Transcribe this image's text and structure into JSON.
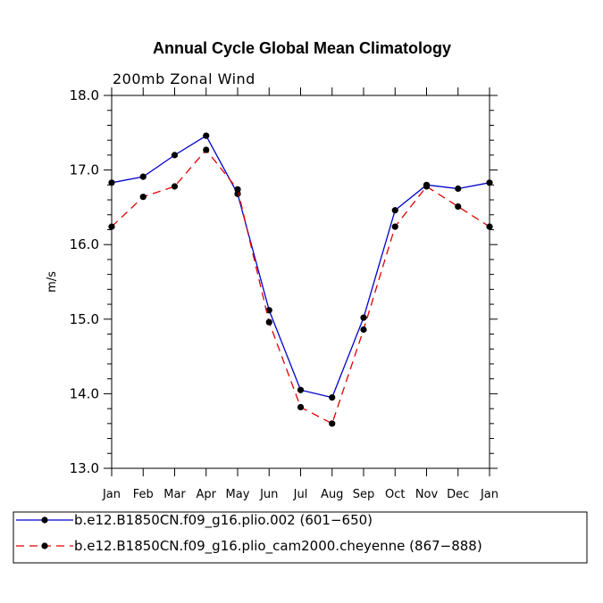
{
  "chart_data": {
    "type": "line",
    "title": "Annual Cycle Global Mean Climatology",
    "subtitle": "200mb Zonal Wind",
    "ylabel": "m/s",
    "xlabel": "",
    "ylim": [
      13.0,
      18.0
    ],
    "yticks": [
      "13.0",
      "14.0",
      "15.0",
      "16.0",
      "17.0",
      "18.0"
    ],
    "categories": [
      "Jan",
      "Feb",
      "Mar",
      "Apr",
      "May",
      "Jun",
      "Jul",
      "Aug",
      "Sep",
      "Oct",
      "Nov",
      "Dec",
      "Jan"
    ],
    "series": [
      {
        "name": "b.e12.B1850CN.f09_g16.plio.002 (601−650)",
        "color": "#0000cc",
        "dash": "solid",
        "values": [
          16.83,
          16.91,
          17.2,
          17.46,
          16.68,
          15.12,
          14.05,
          13.95,
          15.02,
          16.46,
          16.8,
          16.75,
          16.83
        ]
      },
      {
        "name": "b.e12.B1850CN.f09_g16.plio_cam2000.cheyenne (867−888)",
        "color": "#e00000",
        "dash": "dashed",
        "values": [
          16.24,
          16.64,
          16.78,
          17.27,
          16.74,
          14.96,
          13.82,
          13.6,
          14.86,
          16.24,
          16.78,
          16.51,
          16.24
        ]
      }
    ],
    "grid": false,
    "legend_position": "bottom"
  }
}
